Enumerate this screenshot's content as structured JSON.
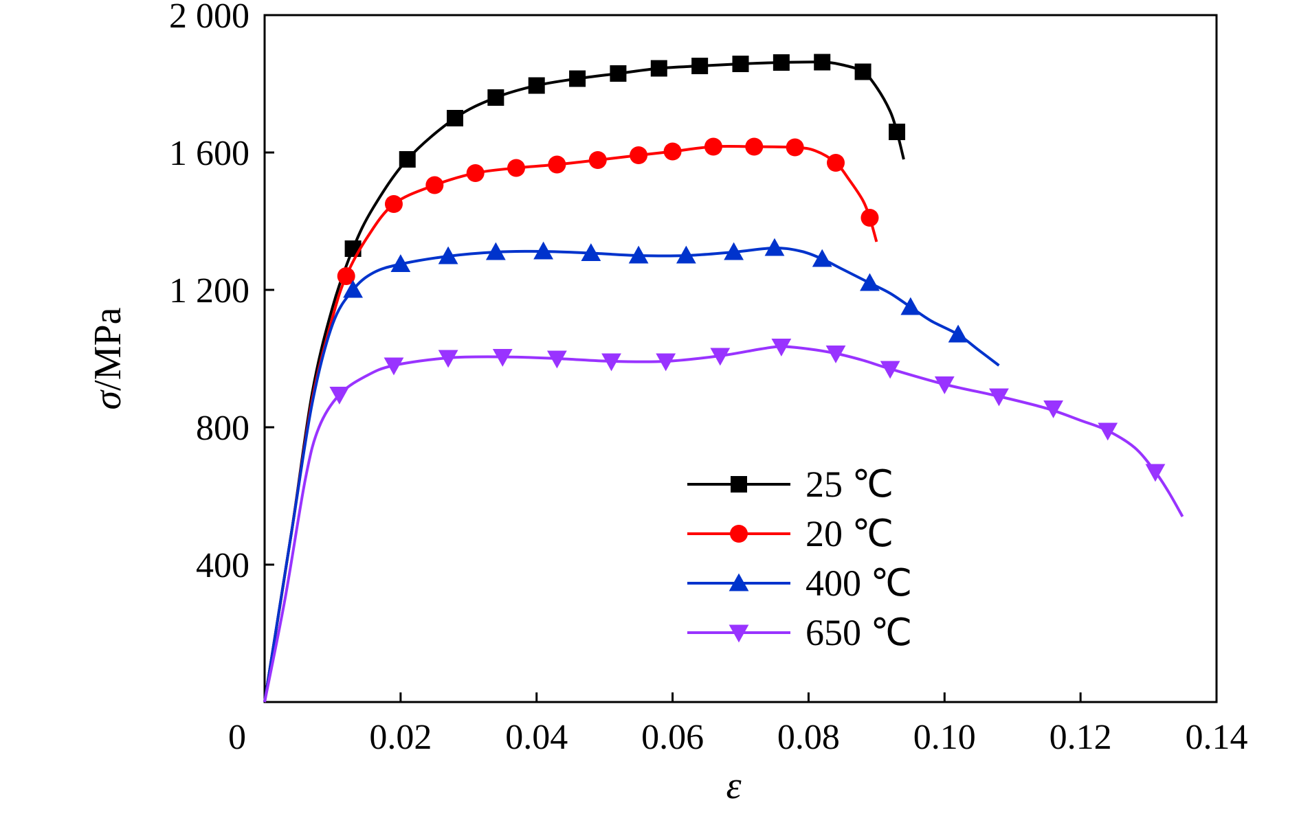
{
  "chart_data": {
    "type": "line",
    "xlabel": "ε",
    "ylabel_symbol": "σ",
    "ylabel_unit": "/MPa",
    "xlim": [
      0,
      0.14
    ],
    "ylim": [
      0,
      2000
    ],
    "x_ticks": [
      0,
      0.02,
      0.04,
      0.06,
      0.08,
      0.1,
      0.12,
      0.14
    ],
    "x_tick_labels": [
      "0",
      "0.02",
      "0.04",
      "0.06",
      "0.08",
      "0.10",
      "0.12",
      "0.14"
    ],
    "y_ticks": [
      400,
      800,
      1200,
      1600,
      2000
    ],
    "y_tick_labels": [
      "400",
      "800",
      "1 200",
      "1 600",
      "2 000"
    ],
    "grid": false,
    "legend_position": "lower-right",
    "series": [
      {
        "name": "25 ℃",
        "color": "#000000",
        "marker": "square",
        "curve": [
          [
            0,
            0
          ],
          [
            0.004,
            500
          ],
          [
            0.007,
            900
          ],
          [
            0.01,
            1150
          ],
          [
            0.013,
            1320
          ],
          [
            0.016,
            1440
          ],
          [
            0.021,
            1580
          ],
          [
            0.028,
            1700
          ],
          [
            0.034,
            1760
          ],
          [
            0.04,
            1795
          ],
          [
            0.046,
            1815
          ],
          [
            0.052,
            1830
          ],
          [
            0.058,
            1845
          ],
          [
            0.064,
            1852
          ],
          [
            0.07,
            1858
          ],
          [
            0.076,
            1862
          ],
          [
            0.082,
            1863
          ],
          [
            0.085,
            1855
          ],
          [
            0.088,
            1835
          ],
          [
            0.09,
            1790
          ],
          [
            0.092,
            1720
          ],
          [
            0.093,
            1660
          ],
          [
            0.094,
            1580
          ]
        ],
        "markers": [
          [
            0.013,
            1320
          ],
          [
            0.021,
            1580
          ],
          [
            0.028,
            1700
          ],
          [
            0.034,
            1760
          ],
          [
            0.04,
            1795
          ],
          [
            0.046,
            1815
          ],
          [
            0.052,
            1830
          ],
          [
            0.058,
            1845
          ],
          [
            0.064,
            1852
          ],
          [
            0.07,
            1858
          ],
          [
            0.076,
            1862
          ],
          [
            0.082,
            1863
          ],
          [
            0.088,
            1835
          ],
          [
            0.093,
            1660
          ]
        ]
      },
      {
        "name": "20 ℃",
        "color": "#ff0000",
        "marker": "circle",
        "curve": [
          [
            0,
            0
          ],
          [
            0.004,
            500
          ],
          [
            0.007,
            880
          ],
          [
            0.01,
            1120
          ],
          [
            0.012,
            1240
          ],
          [
            0.015,
            1350
          ],
          [
            0.019,
            1450
          ],
          [
            0.025,
            1505
          ],
          [
            0.031,
            1540
          ],
          [
            0.037,
            1555
          ],
          [
            0.043,
            1565
          ],
          [
            0.049,
            1578
          ],
          [
            0.055,
            1592
          ],
          [
            0.06,
            1603
          ],
          [
            0.066,
            1617
          ],
          [
            0.072,
            1617
          ],
          [
            0.078,
            1615
          ],
          [
            0.081,
            1605
          ],
          [
            0.084,
            1570
          ],
          [
            0.086,
            1520
          ],
          [
            0.088,
            1460
          ],
          [
            0.089,
            1410
          ],
          [
            0.09,
            1340
          ]
        ],
        "markers": [
          [
            0.012,
            1240
          ],
          [
            0.019,
            1450
          ],
          [
            0.025,
            1505
          ],
          [
            0.031,
            1540
          ],
          [
            0.037,
            1555
          ],
          [
            0.043,
            1565
          ],
          [
            0.049,
            1578
          ],
          [
            0.055,
            1592
          ],
          [
            0.06,
            1603
          ],
          [
            0.066,
            1617
          ],
          [
            0.072,
            1617
          ],
          [
            0.078,
            1615
          ],
          [
            0.084,
            1570
          ],
          [
            0.089,
            1410
          ]
        ]
      },
      {
        "name": "400 ℃",
        "color": "#0033cc",
        "marker": "triangle-up",
        "curve": [
          [
            0,
            0
          ],
          [
            0.004,
            500
          ],
          [
            0.007,
            870
          ],
          [
            0.01,
            1100
          ],
          [
            0.013,
            1200
          ],
          [
            0.016,
            1250
          ],
          [
            0.02,
            1275
          ],
          [
            0.027,
            1298
          ],
          [
            0.034,
            1310
          ],
          [
            0.041,
            1312
          ],
          [
            0.048,
            1307
          ],
          [
            0.055,
            1300
          ],
          [
            0.062,
            1300
          ],
          [
            0.069,
            1310
          ],
          [
            0.075,
            1322
          ],
          [
            0.079,
            1312
          ],
          [
            0.082,
            1290
          ],
          [
            0.085,
            1260
          ],
          [
            0.089,
            1220
          ],
          [
            0.092,
            1190
          ],
          [
            0.095,
            1150
          ],
          [
            0.098,
            1110
          ],
          [
            0.102,
            1070
          ],
          [
            0.105,
            1025
          ],
          [
            0.108,
            980
          ]
        ],
        "markers": [
          [
            0.013,
            1200
          ],
          [
            0.02,
            1275
          ],
          [
            0.027,
            1298
          ],
          [
            0.034,
            1310
          ],
          [
            0.041,
            1312
          ],
          [
            0.048,
            1307
          ],
          [
            0.055,
            1300
          ],
          [
            0.062,
            1300
          ],
          [
            0.069,
            1310
          ],
          [
            0.075,
            1322
          ],
          [
            0.082,
            1290
          ],
          [
            0.089,
            1220
          ],
          [
            0.095,
            1150
          ],
          [
            0.102,
            1070
          ]
        ]
      },
      {
        "name": "650 ℃",
        "color": "#9933ff",
        "marker": "triangle-down",
        "curve": [
          [
            0,
            0
          ],
          [
            0.003,
            300
          ],
          [
            0.006,
            650
          ],
          [
            0.008,
            800
          ],
          [
            0.011,
            895
          ],
          [
            0.015,
            950
          ],
          [
            0.019,
            980
          ],
          [
            0.027,
            1002
          ],
          [
            0.035,
            1005
          ],
          [
            0.043,
            1000
          ],
          [
            0.051,
            992
          ],
          [
            0.059,
            992
          ],
          [
            0.067,
            1008
          ],
          [
            0.073,
            1028
          ],
          [
            0.076,
            1035
          ],
          [
            0.08,
            1028
          ],
          [
            0.084,
            1015
          ],
          [
            0.088,
            995
          ],
          [
            0.092,
            970
          ],
          [
            0.1,
            925
          ],
          [
            0.108,
            890
          ],
          [
            0.115,
            855
          ],
          [
            0.12,
            820
          ],
          [
            0.124,
            790
          ],
          [
            0.128,
            740
          ],
          [
            0.131,
            670
          ],
          [
            0.133,
            610
          ],
          [
            0.135,
            540
          ]
        ],
        "markers": [
          [
            0.011,
            895
          ],
          [
            0.019,
            980
          ],
          [
            0.027,
            1002
          ],
          [
            0.035,
            1005
          ],
          [
            0.043,
            1000
          ],
          [
            0.051,
            992
          ],
          [
            0.059,
            992
          ],
          [
            0.067,
            1008
          ],
          [
            0.076,
            1035
          ],
          [
            0.084,
            1015
          ],
          [
            0.092,
            970
          ],
          [
            0.1,
            925
          ],
          [
            0.108,
            890
          ],
          [
            0.116,
            855
          ],
          [
            0.124,
            790
          ],
          [
            0.131,
            670
          ]
        ]
      }
    ]
  }
}
